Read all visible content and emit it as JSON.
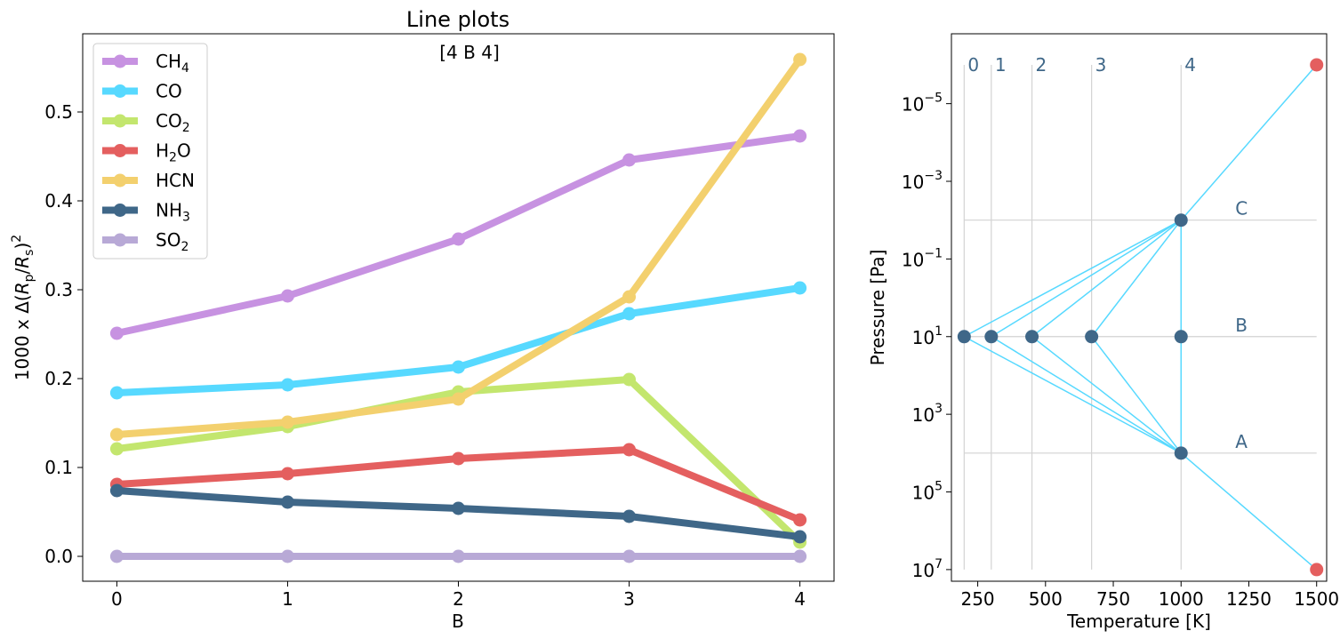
{
  "chart_data": [
    {
      "type": "line",
      "title": "Line plots",
      "annotation": "[4 B 4]",
      "xlabel": "B",
      "ylabel": "1000 x Δ(R_p/R_s)^2",
      "xlim": [
        -0.2,
        4.2
      ],
      "ylim": [
        -0.028,
        0.588
      ],
      "x": [
        0,
        1,
        2,
        3,
        4
      ],
      "xticks": [
        "0",
        "1",
        "2",
        "3",
        "4"
      ],
      "yticks": [
        "0.0",
        "0.1",
        "0.2",
        "0.3",
        "0.4",
        "0.5"
      ],
      "ytick_values": [
        0.0,
        0.1,
        0.2,
        0.3,
        0.4,
        0.5
      ],
      "grid": false,
      "legend_position": "top-left",
      "series": [
        {
          "name": "CH4",
          "label_main": "CH",
          "label_sub": "4",
          "label_tail": "",
          "color": "#c792e1",
          "values": [
            0.251,
            0.293,
            0.357,
            0.446,
            0.473
          ]
        },
        {
          "name": "CO",
          "label_main": "CO",
          "label_sub": "",
          "label_tail": "",
          "color": "#57d9ff",
          "values": [
            0.184,
            0.193,
            0.213,
            0.273,
            0.302
          ]
        },
        {
          "name": "CO2",
          "label_main": "CO",
          "label_sub": "2",
          "label_tail": "",
          "color": "#c3e66e",
          "values": [
            0.121,
            0.146,
            0.185,
            0.199,
            0.016
          ]
        },
        {
          "name": "H2O",
          "label_main": "H",
          "label_sub": "2",
          "label_tail": "O",
          "color": "#e45f5f",
          "values": [
            0.081,
            0.093,
            0.11,
            0.12,
            0.041
          ]
        },
        {
          "name": "HCN",
          "label_main": "HCN",
          "label_sub": "",
          "label_tail": "",
          "color": "#f3d06e",
          "values": [
            0.137,
            0.151,
            0.177,
            0.292,
            0.559
          ]
        },
        {
          "name": "NH3",
          "label_main": "NH",
          "label_sub": "3",
          "label_tail": "",
          "color": "#3f6788",
          "values": [
            0.074,
            0.061,
            0.054,
            0.045,
            0.022
          ]
        },
        {
          "name": "SO2",
          "label_main": "SO",
          "label_sub": "2",
          "label_tail": "",
          "color": "#b8a9d6",
          "values": [
            0.0,
            0.0,
            0.0,
            0.0,
            0.0
          ]
        }
      ]
    },
    {
      "type": "line",
      "xlabel": "Temperature [K]",
      "ylabel": "Pressure [Pa]",
      "xlim": [
        153,
        1537
      ],
      "ylim_log10": [
        -6.8,
        7.3
      ],
      "y_scale": "log",
      "y_inverted": true,
      "xticks": [
        "250",
        "500",
        "750",
        "1000",
        "1250",
        "1500"
      ],
      "xtick_values": [
        250,
        500,
        750,
        1000,
        1250,
        1500
      ],
      "yticks": [
        {
          "base": "10",
          "exp": "−5",
          "log10": -5
        },
        {
          "base": "10",
          "exp": "−3",
          "log10": -3
        },
        {
          "base": "10",
          "exp": "−1",
          "log10": -1
        },
        {
          "base": "10",
          "exp": "1",
          "log10": 1
        },
        {
          "base": "10",
          "exp": "3",
          "log10": 3
        },
        {
          "base": "10",
          "exp": "5",
          "log10": 5
        },
        {
          "base": "10",
          "exp": "7",
          "log10": 7
        }
      ],
      "line_color": "#57d9ff",
      "grid_color": "#d3d3d3",
      "node_color": "#3f6788",
      "end_color": "#e45f5f",
      "label_color": "#3f6788",
      "vertical_guides": [
        {
          "label": "0",
          "T": 200
        },
        {
          "label": "1",
          "T": 300
        },
        {
          "label": "2",
          "T": 450
        },
        {
          "label": "3",
          "T": 670
        },
        {
          "label": "4",
          "T": 1000
        }
      ],
      "horizontal_guides": [
        {
          "label": "C",
          "log10P": -2
        },
        {
          "label": "B",
          "log10P": 1
        },
        {
          "label": "A",
          "log10P": 4
        }
      ],
      "guide_T_range": [
        200,
        1500
      ],
      "guide_logP_range": [
        -6,
        7
      ],
      "nodes": [
        {
          "T": 1000,
          "log10P": -2
        },
        {
          "T": 200,
          "log10P": 1
        },
        {
          "T": 300,
          "log10P": 1
        },
        {
          "T": 450,
          "log10P": 1
        },
        {
          "T": 670,
          "log10P": 1
        },
        {
          "T": 1000,
          "log10P": 1
        },
        {
          "T": 1000,
          "log10P": 4
        }
      ],
      "endpoints": [
        {
          "T": 1500,
          "log10P": -6
        },
        {
          "T": 1500,
          "log10P": 7
        }
      ],
      "segments": [
        [
          [
            1500,
            -6
          ],
          [
            1000,
            -2
          ]
        ],
        [
          [
            1000,
            -2
          ],
          [
            200,
            1
          ]
        ],
        [
          [
            1000,
            -2
          ],
          [
            300,
            1
          ]
        ],
        [
          [
            1000,
            -2
          ],
          [
            450,
            1
          ]
        ],
        [
          [
            1000,
            -2
          ],
          [
            670,
            1
          ]
        ],
        [
          [
            1000,
            -2
          ],
          [
            1000,
            1
          ]
        ],
        [
          [
            200,
            1
          ],
          [
            1000,
            4
          ]
        ],
        [
          [
            300,
            1
          ],
          [
            1000,
            4
          ]
        ],
        [
          [
            450,
            1
          ],
          [
            1000,
            4
          ]
        ],
        [
          [
            670,
            1
          ],
          [
            1000,
            4
          ]
        ],
        [
          [
            1000,
            1
          ],
          [
            1000,
            4
          ]
        ],
        [
          [
            1000,
            4
          ],
          [
            1500,
            7
          ]
        ]
      ]
    }
  ]
}
